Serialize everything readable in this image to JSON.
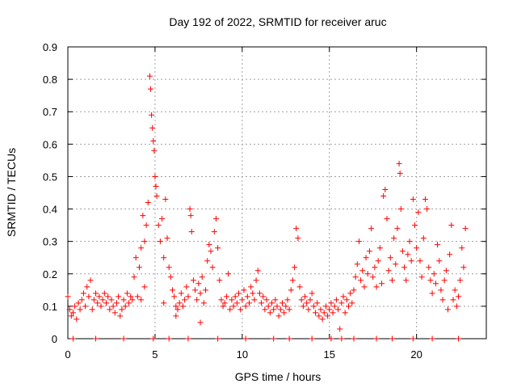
{
  "chart_data": {
    "type": "scatter",
    "title": "Day 192 of 2022, SRMTID for receiver aruc",
    "xlabel": "GPS time / hours",
    "ylabel": "SRMTID / TECUs",
    "xlim": [
      0,
      24
    ],
    "ylim": [
      0,
      0.9
    ],
    "xticks": [
      0,
      5,
      10,
      15,
      20
    ],
    "xtick_labels": [
      "0",
      "5",
      "10",
      "15",
      "20"
    ],
    "yticks": [
      0,
      0.1,
      0.2,
      0.3,
      0.4,
      0.5,
      0.6,
      0.7,
      0.8,
      0.9
    ],
    "ytick_labels": [
      "0",
      "0.1",
      "0.2",
      "0.3",
      "0.4",
      "0.5",
      "0.6",
      "0.7",
      "0.8",
      "0.9"
    ],
    "grid": true,
    "legend": "none",
    "marker": "+",
    "series": [
      {
        "name": "SRMTID",
        "color": "#ff0000",
        "points": [
          [
            0.0,
            0.13
          ],
          [
            0.1,
            0.09
          ],
          [
            0.2,
            0.07
          ],
          [
            0.3,
            0.08
          ],
          [
            0.4,
            0.1
          ],
          [
            0.5,
            0.06
          ],
          [
            0.6,
            0.11
          ],
          [
            0.7,
            0.09
          ],
          [
            0.8,
            0.12
          ],
          [
            0.9,
            0.14
          ],
          [
            1.0,
            0.1
          ],
          [
            1.1,
            0.16
          ],
          [
            1.2,
            0.13
          ],
          [
            1.3,
            0.18
          ],
          [
            1.4,
            0.09
          ],
          [
            1.5,
            0.12
          ],
          [
            1.6,
            0.14
          ],
          [
            1.7,
            0.11
          ],
          [
            1.8,
            0.13
          ],
          [
            1.9,
            0.1
          ],
          [
            2.0,
            0.12
          ],
          [
            2.1,
            0.14
          ],
          [
            2.2,
            0.11
          ],
          [
            2.3,
            0.13
          ],
          [
            2.4,
            0.09
          ],
          [
            2.5,
            0.12
          ],
          [
            2.6,
            0.1
          ],
          [
            2.7,
            0.08
          ],
          [
            2.8,
            0.11
          ],
          [
            2.9,
            0.13
          ],
          [
            3.0,
            0.07
          ],
          [
            3.1,
            0.09
          ],
          [
            3.2,
            0.12
          ],
          [
            3.3,
            0.1
          ],
          [
            3.4,
            0.14
          ],
          [
            3.5,
            0.11
          ],
          [
            3.6,
            0.13
          ],
          [
            3.7,
            0.12
          ],
          [
            3.8,
            0.19
          ],
          [
            3.9,
            0.25
          ],
          [
            4.0,
            0.13
          ],
          [
            4.1,
            0.22
          ],
          [
            4.2,
            0.28
          ],
          [
            4.3,
            0.38
          ],
          [
            4.4,
            0.3
          ],
          [
            4.5,
            0.35
          ],
          [
            4.6,
            0.42
          ],
          [
            4.7,
            0.81
          ],
          [
            4.75,
            0.77
          ],
          [
            4.8,
            0.69
          ],
          [
            4.85,
            0.65
          ],
          [
            4.9,
            0.61
          ],
          [
            4.95,
            0.58
          ],
          [
            5.0,
            0.5
          ],
          [
            5.05,
            0.47
          ],
          [
            5.1,
            0.44
          ],
          [
            5.2,
            0.35
          ],
          [
            5.3,
            0.3
          ],
          [
            5.4,
            0.37
          ],
          [
            5.5,
            0.25
          ],
          [
            5.6,
            0.43
          ],
          [
            5.7,
            0.31
          ],
          [
            5.8,
            0.22
          ],
          [
            5.9,
            0.19
          ],
          [
            6.0,
            0.15
          ],
          [
            6.1,
            0.13
          ],
          [
            6.2,
            0.1
          ],
          [
            6.3,
            0.09
          ],
          [
            6.4,
            0.11
          ],
          [
            6.5,
            0.14
          ],
          [
            6.6,
            0.1
          ],
          [
            6.7,
            0.12
          ],
          [
            6.8,
            0.16
          ],
          [
            6.9,
            0.13
          ],
          [
            7.0,
            0.4
          ],
          [
            7.05,
            0.38
          ],
          [
            7.1,
            0.33
          ],
          [
            7.2,
            0.18
          ],
          [
            7.3,
            0.15
          ],
          [
            7.4,
            0.12
          ],
          [
            7.5,
            0.17
          ],
          [
            7.6,
            0.14
          ],
          [
            7.7,
            0.19
          ],
          [
            7.8,
            0.11
          ],
          [
            7.9,
            0.15
          ],
          [
            8.0,
            0.24
          ],
          [
            8.1,
            0.29
          ],
          [
            8.2,
            0.27
          ],
          [
            8.3,
            0.22
          ],
          [
            8.4,
            0.33
          ],
          [
            8.5,
            0.37
          ],
          [
            8.6,
            0.28
          ],
          [
            8.7,
            0.18
          ],
          [
            8.8,
            0.12
          ],
          [
            8.9,
            0.1
          ],
          [
            9.0,
            0.11
          ],
          [
            9.1,
            0.13
          ],
          [
            9.2,
            0.2
          ],
          [
            9.3,
            0.09
          ],
          [
            9.4,
            0.12
          ],
          [
            9.5,
            0.1
          ],
          [
            9.6,
            0.13
          ],
          [
            9.7,
            0.11
          ],
          [
            9.8,
            0.14
          ],
          [
            9.9,
            0.09
          ],
          [
            10.0,
            0.12
          ],
          [
            10.1,
            0.15
          ],
          [
            10.2,
            0.1
          ],
          [
            10.3,
            0.13
          ],
          [
            10.4,
            0.11
          ],
          [
            10.5,
            0.16
          ],
          [
            10.6,
            0.14
          ],
          [
            10.7,
            0.12
          ],
          [
            10.8,
            0.18
          ],
          [
            10.9,
            0.21
          ],
          [
            11.0,
            0.14
          ],
          [
            11.1,
            0.11
          ],
          [
            11.2,
            0.13
          ],
          [
            11.3,
            0.09
          ],
          [
            11.4,
            0.12
          ],
          [
            11.5,
            0.1
          ],
          [
            11.6,
            0.08
          ],
          [
            11.7,
            0.11
          ],
          [
            11.8,
            0.09
          ],
          [
            11.9,
            0.12
          ],
          [
            12.0,
            0.1
          ],
          [
            12.1,
            0.07
          ],
          [
            12.2,
            0.09
          ],
          [
            12.3,
            0.11
          ],
          [
            12.4,
            0.08
          ],
          [
            12.5,
            0.1
          ],
          [
            12.6,
            0.12
          ],
          [
            12.7,
            0.09
          ],
          [
            12.8,
            0.15
          ],
          [
            12.9,
            0.18
          ],
          [
            13.0,
            0.22
          ],
          [
            13.1,
            0.34
          ],
          [
            13.2,
            0.31
          ],
          [
            13.3,
            0.16
          ],
          [
            13.4,
            0.12
          ],
          [
            13.5,
            0.1
          ],
          [
            13.6,
            0.13
          ],
          [
            13.7,
            0.11
          ],
          [
            13.8,
            0.09
          ],
          [
            13.9,
            0.12
          ],
          [
            14.0,
            0.14
          ],
          [
            14.1,
            0.1
          ],
          [
            14.2,
            0.08
          ],
          [
            14.3,
            0.11
          ],
          [
            14.4,
            0.07
          ],
          [
            14.5,
            0.09
          ],
          [
            14.6,
            0.06
          ],
          [
            14.7,
            0.08
          ],
          [
            14.8,
            0.1
          ],
          [
            14.9,
            0.07
          ],
          [
            15.0,
            0.09
          ],
          [
            15.1,
            0.11
          ],
          [
            15.2,
            0.08
          ],
          [
            15.3,
            0.1
          ],
          [
            15.4,
            0.12
          ],
          [
            15.5,
            0.09
          ],
          [
            15.6,
            0.03
          ],
          [
            15.7,
            0.11
          ],
          [
            15.8,
            0.13
          ],
          [
            15.9,
            0.08
          ],
          [
            16.0,
            0.12
          ],
          [
            16.1,
            0.1
          ],
          [
            16.2,
            0.14
          ],
          [
            16.3,
            0.11
          ],
          [
            16.4,
            0.15
          ],
          [
            16.5,
            0.19
          ],
          [
            16.6,
            0.23
          ],
          [
            16.7,
            0.3
          ],
          [
            16.8,
            0.18
          ],
          [
            16.9,
            0.21
          ],
          [
            17.0,
            0.16
          ],
          [
            17.1,
            0.25
          ],
          [
            17.2,
            0.2
          ],
          [
            17.3,
            0.27
          ],
          [
            17.4,
            0.34
          ],
          [
            17.5,
            0.19
          ],
          [
            17.6,
            0.22
          ],
          [
            17.7,
            0.16
          ],
          [
            17.8,
            0.24
          ],
          [
            17.9,
            0.28
          ],
          [
            18.0,
            0.17
          ],
          [
            18.1,
            0.44
          ],
          [
            18.2,
            0.46
          ],
          [
            18.3,
            0.37
          ],
          [
            18.4,
            0.21
          ],
          [
            18.5,
            0.25
          ],
          [
            18.6,
            0.18
          ],
          [
            18.7,
            0.31
          ],
          [
            18.8,
            0.23
          ],
          [
            18.9,
            0.34
          ],
          [
            19.0,
            0.54
          ],
          [
            19.05,
            0.51
          ],
          [
            19.1,
            0.4
          ],
          [
            19.2,
            0.27
          ],
          [
            19.3,
            0.22
          ],
          [
            19.4,
            0.18
          ],
          [
            19.5,
            0.26
          ],
          [
            19.6,
            0.3
          ],
          [
            19.7,
            0.24
          ],
          [
            19.8,
            0.43
          ],
          [
            19.9,
            0.35
          ],
          [
            20.0,
            0.28
          ],
          [
            20.1,
            0.39
          ],
          [
            20.2,
            0.24
          ],
          [
            20.3,
            0.19
          ],
          [
            20.4,
            0.31
          ],
          [
            20.5,
            0.43
          ],
          [
            20.6,
            0.4
          ],
          [
            20.7,
            0.22
          ],
          [
            20.8,
            0.18
          ],
          [
            20.9,
            0.14
          ],
          [
            21.0,
            0.2
          ],
          [
            21.1,
            0.17
          ],
          [
            21.2,
            0.29
          ],
          [
            21.3,
            0.24
          ],
          [
            21.4,
            0.15
          ],
          [
            21.5,
            0.12
          ],
          [
            21.6,
            0.18
          ],
          [
            21.7,
            0.21
          ],
          [
            21.8,
            0.09
          ],
          [
            21.9,
            0.26
          ],
          [
            22.0,
            0.35
          ],
          [
            22.1,
            0.12
          ],
          [
            22.2,
            0.15
          ],
          [
            22.3,
            0.1
          ],
          [
            22.4,
            0.13
          ],
          [
            22.5,
            0.18
          ],
          [
            22.6,
            0.28
          ],
          [
            22.7,
            0.22
          ],
          [
            22.8,
            0.34
          ],
          [
            4.2,
            0.12
          ],
          [
            4.4,
            0.16
          ],
          [
            5.5,
            0.11
          ],
          [
            6.2,
            0.07
          ],
          [
            7.6,
            0.05
          ],
          [
            0.3,
            0.0
          ],
          [
            1.6,
            0.0
          ],
          [
            3.2,
            0.0
          ],
          [
            4.9,
            0.0
          ],
          [
            5.8,
            0.0
          ],
          [
            6.9,
            0.0
          ],
          [
            8.6,
            0.0
          ],
          [
            10.2,
            0.0
          ],
          [
            11.8,
            0.0
          ],
          [
            12.7,
            0.0
          ],
          [
            14.0,
            0.0
          ],
          [
            15.1,
            0.0
          ],
          [
            15.7,
            0.0
          ],
          [
            16.4,
            0.0
          ],
          [
            17.7,
            0.0
          ],
          [
            18.6,
            0.0
          ],
          [
            19.8,
            0.0
          ],
          [
            20.9,
            0.0
          ],
          [
            22.4,
            0.0
          ]
        ]
      }
    ]
  }
}
